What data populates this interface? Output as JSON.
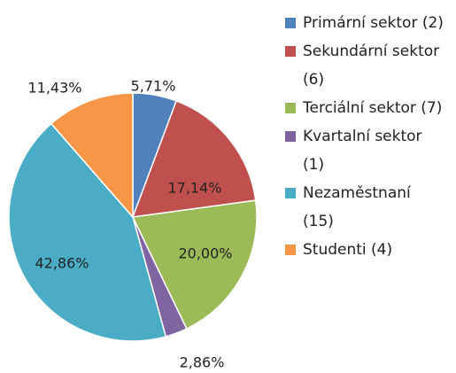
{
  "chart_data": {
    "type": "pie",
    "categories": [
      "Primární sektor (2)",
      "Sekundární sektor (6)",
      "Terciální sektor (7)",
      "Kvartalní sektor (1)",
      "Nezaměstnaní (15)",
      "Studenti (4)"
    ],
    "values": [
      5.71,
      17.14,
      20.0,
      2.86,
      42.86,
      11.43
    ],
    "value_labels": [
      "5,71%",
      "17,14%",
      "20,00%",
      "2,86%",
      "42,86%",
      "11,43%"
    ],
    "colors": [
      "#4f81bd",
      "#c0504d",
      "#9bbb59",
      "#8064a2",
      "#4bacc6",
      "#f79646"
    ]
  }
}
